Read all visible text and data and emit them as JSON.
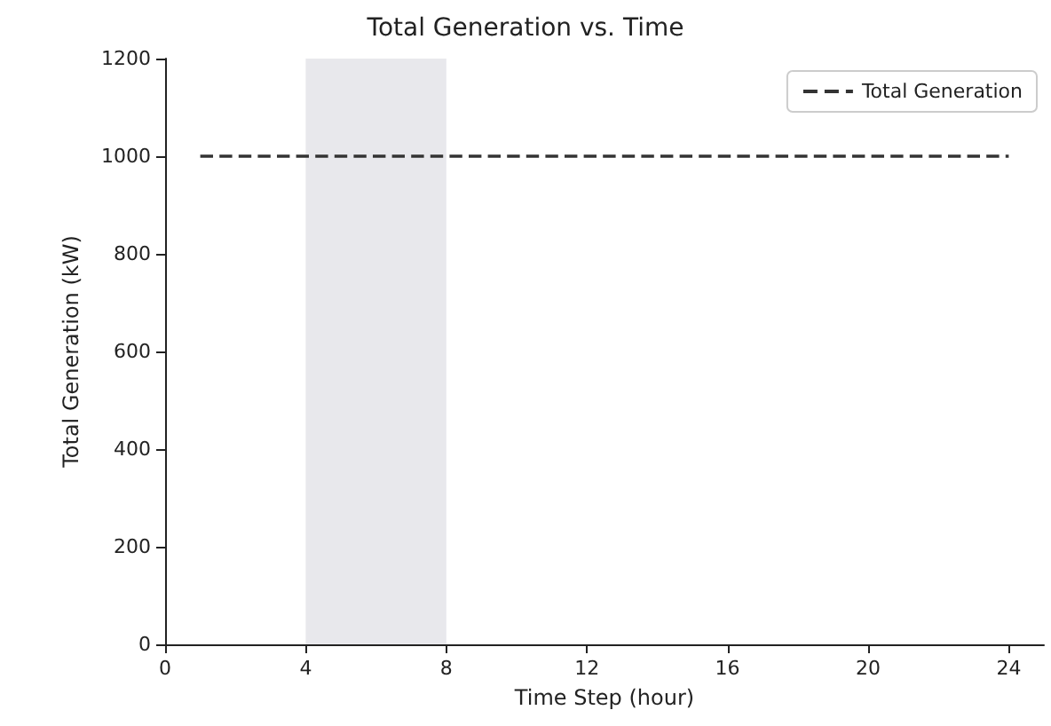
{
  "chart_data": {
    "type": "line",
    "title": "Total Generation vs. Time",
    "xlabel": "Time Step (hour)",
    "ylabel": "Total Generation (kW)",
    "x": [
      1,
      24
    ],
    "series": [
      {
        "name": "Total Generation",
        "color": "#333333",
        "values": [
          1000,
          1000
        ]
      }
    ],
    "xlim": [
      0,
      25
    ],
    "xticks": [
      0,
      4,
      8,
      12,
      16,
      20,
      24
    ],
    "ylim": [
      0,
      1200
    ],
    "yticks": [
      0,
      200,
      400,
      600,
      800,
      1000,
      1200
    ],
    "bands": [
      {
        "axis": "x",
        "from": 4,
        "to": 8,
        "color": "#e8e8ec"
      }
    ],
    "legend": "top right",
    "grid": false,
    "marker": "none",
    "line_style": "dashed"
  }
}
